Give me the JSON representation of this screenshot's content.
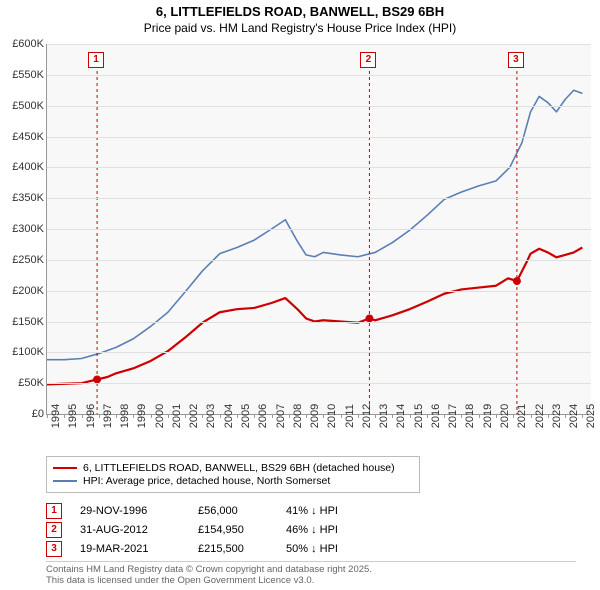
{
  "title": {
    "line1": "6, LITTLEFIELDS ROAD, BANWELL, BS29 6BH",
    "line2": "Price paid vs. HM Land Registry's House Price Index (HPI)"
  },
  "chart": {
    "type": "line",
    "background_color": "#f8f8f8",
    "grid_color": "#e0e0e0",
    "axis_color": "#999999",
    "ylim": [
      0,
      600000
    ],
    "ytick_step": 50000,
    "ytick_labels": [
      "£0",
      "£50K",
      "£100K",
      "£150K",
      "£200K",
      "£250K",
      "£300K",
      "£350K",
      "£400K",
      "£450K",
      "£500K",
      "£550K",
      "£600K"
    ],
    "xlim": [
      1994,
      2025.5
    ],
    "xticks": [
      1994,
      1995,
      1996,
      1997,
      1998,
      1999,
      2000,
      2001,
      2002,
      2003,
      2004,
      2005,
      2006,
      2007,
      2008,
      2009,
      2010,
      2011,
      2012,
      2013,
      2014,
      2015,
      2016,
      2017,
      2018,
      2019,
      2020,
      2021,
      2022,
      2023,
      2024,
      2025
    ],
    "label_fontsize": 11,
    "series": [
      {
        "name": "price_paid",
        "label": "6, LITTLEFIELDS ROAD, BANWELL, BS29 6BH (detached house)",
        "color": "#cc0000",
        "line_width": 2.2,
        "points": [
          [
            1994,
            48000
          ],
          [
            1995,
            49000
          ],
          [
            1996,
            50000
          ],
          [
            1996.9,
            56000
          ],
          [
            1997.5,
            60000
          ],
          [
            1998,
            66000
          ],
          [
            1999,
            74000
          ],
          [
            2000,
            86000
          ],
          [
            2001,
            102000
          ],
          [
            2002,
            124000
          ],
          [
            2003,
            148000
          ],
          [
            2004,
            165000
          ],
          [
            2005,
            170000
          ],
          [
            2006,
            172000
          ],
          [
            2007,
            180000
          ],
          [
            2007.8,
            188000
          ],
          [
            2008.5,
            170000
          ],
          [
            2009,
            155000
          ],
          [
            2009.5,
            150000
          ],
          [
            2010,
            152000
          ],
          [
            2011,
            150000
          ],
          [
            2012,
            148000
          ],
          [
            2012.67,
            154950
          ],
          [
            2013,
            152000
          ],
          [
            2014,
            160000
          ],
          [
            2015,
            170000
          ],
          [
            2016,
            182000
          ],
          [
            2017,
            195000
          ],
          [
            2018,
            202000
          ],
          [
            2019,
            205000
          ],
          [
            2020,
            208000
          ],
          [
            2020.7,
            220000
          ],
          [
            2021.21,
            215500
          ],
          [
            2021.8,
            248000
          ],
          [
            2022,
            260000
          ],
          [
            2022.5,
            268000
          ],
          [
            2023,
            262000
          ],
          [
            2023.5,
            254000
          ],
          [
            2024,
            258000
          ],
          [
            2024.5,
            262000
          ],
          [
            2025,
            270000
          ]
        ]
      },
      {
        "name": "hpi",
        "label": "HPI: Average price, detached house, North Somerset",
        "color": "#5b7fb5",
        "line_width": 1.6,
        "points": [
          [
            1994,
            88000
          ],
          [
            1995,
            88000
          ],
          [
            1996,
            90000
          ],
          [
            1997,
            98000
          ],
          [
            1998,
            108000
          ],
          [
            1999,
            122000
          ],
          [
            2000,
            142000
          ],
          [
            2001,
            165000
          ],
          [
            2002,
            198000
          ],
          [
            2003,
            232000
          ],
          [
            2004,
            260000
          ],
          [
            2005,
            270000
          ],
          [
            2006,
            282000
          ],
          [
            2007,
            300000
          ],
          [
            2007.8,
            315000
          ],
          [
            2008.5,
            280000
          ],
          [
            2009,
            258000
          ],
          [
            2009.5,
            255000
          ],
          [
            2010,
            262000
          ],
          [
            2011,
            258000
          ],
          [
            2012,
            255000
          ],
          [
            2013,
            262000
          ],
          [
            2014,
            278000
          ],
          [
            2015,
            298000
          ],
          [
            2016,
            322000
          ],
          [
            2017,
            348000
          ],
          [
            2018,
            360000
          ],
          [
            2019,
            370000
          ],
          [
            2020,
            378000
          ],
          [
            2020.8,
            400000
          ],
          [
            2021.5,
            440000
          ],
          [
            2022,
            490000
          ],
          [
            2022.5,
            515000
          ],
          [
            2023,
            505000
          ],
          [
            2023.5,
            490000
          ],
          [
            2024,
            510000
          ],
          [
            2024.5,
            525000
          ],
          [
            2025,
            520000
          ]
        ]
      }
    ],
    "markers": [
      {
        "n": "1",
        "year": 1996.9,
        "y_top": 52,
        "color": "#cc0000"
      },
      {
        "n": "2",
        "year": 2012.67,
        "y_top": 52,
        "color": "#cc0000"
      },
      {
        "n": "3",
        "year": 2021.21,
        "y_top": 52,
        "color": "#cc0000"
      }
    ],
    "sale_points": [
      {
        "year": 1996.9,
        "value": 56000,
        "color": "#cc0000"
      },
      {
        "year": 2012.67,
        "value": 154950,
        "color": "#cc0000"
      },
      {
        "year": 2021.21,
        "value": 215500,
        "color": "#cc0000"
      }
    ]
  },
  "legend": {
    "items": [
      {
        "color": "#cc0000",
        "label": "6, LITTLEFIELDS ROAD, BANWELL, BS29 6BH (detached house)"
      },
      {
        "color": "#5b7fb5",
        "label": "HPI: Average price, detached house, North Somerset"
      }
    ]
  },
  "sales": [
    {
      "n": "1",
      "color": "#cc0000",
      "date": "29-NOV-1996",
      "price": "£56,000",
      "delta": "41% ↓ HPI"
    },
    {
      "n": "2",
      "color": "#cc0000",
      "date": "31-AUG-2012",
      "price": "£154,950",
      "delta": "46% ↓ HPI"
    },
    {
      "n": "3",
      "color": "#cc0000",
      "date": "19-MAR-2021",
      "price": "£215,500",
      "delta": "50% ↓ HPI"
    }
  ],
  "footer": {
    "line1": "Contains HM Land Registry data © Crown copyright and database right 2025.",
    "line2": "This data is licensed under the Open Government Licence v3.0."
  }
}
